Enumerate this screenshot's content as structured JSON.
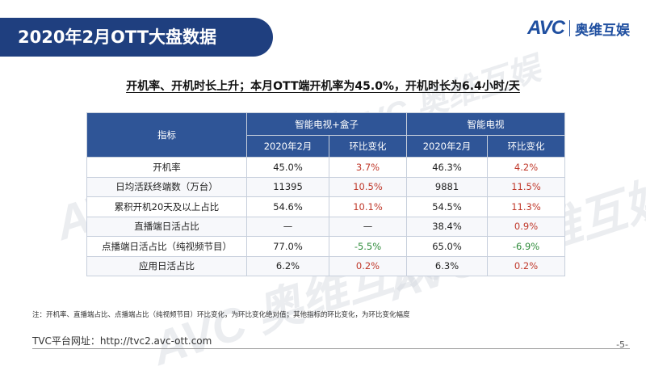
{
  "header": {
    "title": "2020年2月OTT大盘数据",
    "logo_text": "AVC",
    "logo_cn": "奥维互娱"
  },
  "subtitle": "开机率、开机时长上升；本月OTT端开机率为45.0%，开机时长为6.4小时/天",
  "watermark_text": "AVC 奥维互娱",
  "table": {
    "header_metric": "指标",
    "groups": [
      "智能电视+盒子",
      "智能电视"
    ],
    "sub_headers": [
      "2020年2月",
      "环比变化",
      "2020年2月",
      "环比变化"
    ],
    "rows": [
      {
        "name": "开机率",
        "v1": "45.0%",
        "c1": "3.7%",
        "v2": "46.3%",
        "c2": "4.2%",
        "c1_color": "red",
        "c2_color": "red"
      },
      {
        "name": "日均活跃终端数（万台）",
        "v1": "11395",
        "c1": "10.5%",
        "v2": "9881",
        "c2": "11.5%",
        "c1_color": "red",
        "c2_color": "red"
      },
      {
        "name": "累积开机20天及以上占比",
        "v1": "54.6%",
        "c1": "10.1%",
        "v2": "54.5%",
        "c2": "11.3%",
        "c1_color": "red",
        "c2_color": "red"
      },
      {
        "name": "直播端日活占比",
        "v1": "—",
        "c1": "—",
        "v2": "38.4%",
        "c2": "0.9%",
        "c1_color": "none",
        "c2_color": "red"
      },
      {
        "name": "点播端日活占比（纯视频节目）",
        "v1": "77.0%",
        "c1": "-5.5%",
        "v2": "65.0%",
        "c2": "-6.9%",
        "c1_color": "green",
        "c2_color": "green"
      },
      {
        "name": "应用日活占比",
        "v1": "6.2%",
        "c1": "0.2%",
        "v2": "6.3%",
        "c2": "0.2%",
        "c1_color": "red",
        "c2_color": "red"
      }
    ]
  },
  "footnote": "注：开机率、直播端占比、点播端占比（纯视频节目）环比变化，为环比变化绝对值；其他指标的环比变化，为环比变化幅度",
  "site": "TVC平台网址：http://tvc2.avc-ott.com",
  "page_number": "-5-",
  "colors": {
    "brand_blue": "#1f3f7f",
    "table_header": "#2f5597",
    "increase": "#c0392b",
    "decrease": "#2e8b3a"
  }
}
